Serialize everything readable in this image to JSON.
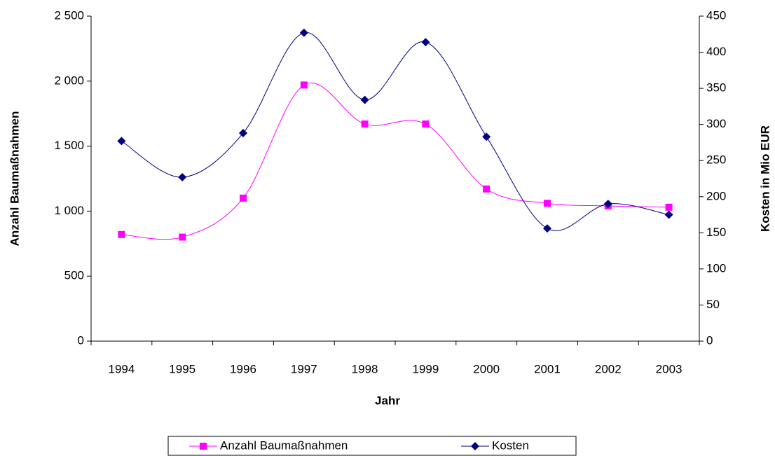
{
  "chart_data": {
    "type": "line",
    "xlabel": "Jahr",
    "ylabel": "Anzahl Baumaßnahmen",
    "y2label": "Kosten in Mio EUR",
    "categories": [
      "1994",
      "1995",
      "1996",
      "1997",
      "1998",
      "1999",
      "2000",
      "2001",
      "2002",
      "2003"
    ],
    "series": [
      {
        "name": "Anzahl Baumaßnahmen",
        "color": "#ff00ff",
        "marker": "square",
        "axis": "y",
        "values": [
          820,
          800,
          1100,
          1970,
          1670,
          1670,
          1170,
          1060,
          1040,
          1030
        ]
      },
      {
        "name": "Kosten",
        "color": "#000080",
        "marker": "diamond",
        "axis": "y2",
        "values": [
          277,
          227,
          288,
          427,
          334,
          414,
          283,
          156,
          190,
          175
        ]
      }
    ],
    "ylim": [
      0,
      2500
    ],
    "yticks": [
      0,
      500,
      {
        "value": 1000,
        "label": "1 000"
      },
      {
        "value": 1500,
        "label": "1 500"
      },
      {
        "value": 2000,
        "label": "2 000"
      },
      {
        "value": 2500,
        "label": "2 500"
      }
    ],
    "y2lim": [
      0,
      450
    ],
    "y2ticks": [
      0,
      50,
      100,
      150,
      200,
      250,
      300,
      350,
      400,
      450
    ],
    "legend": "bottom"
  }
}
